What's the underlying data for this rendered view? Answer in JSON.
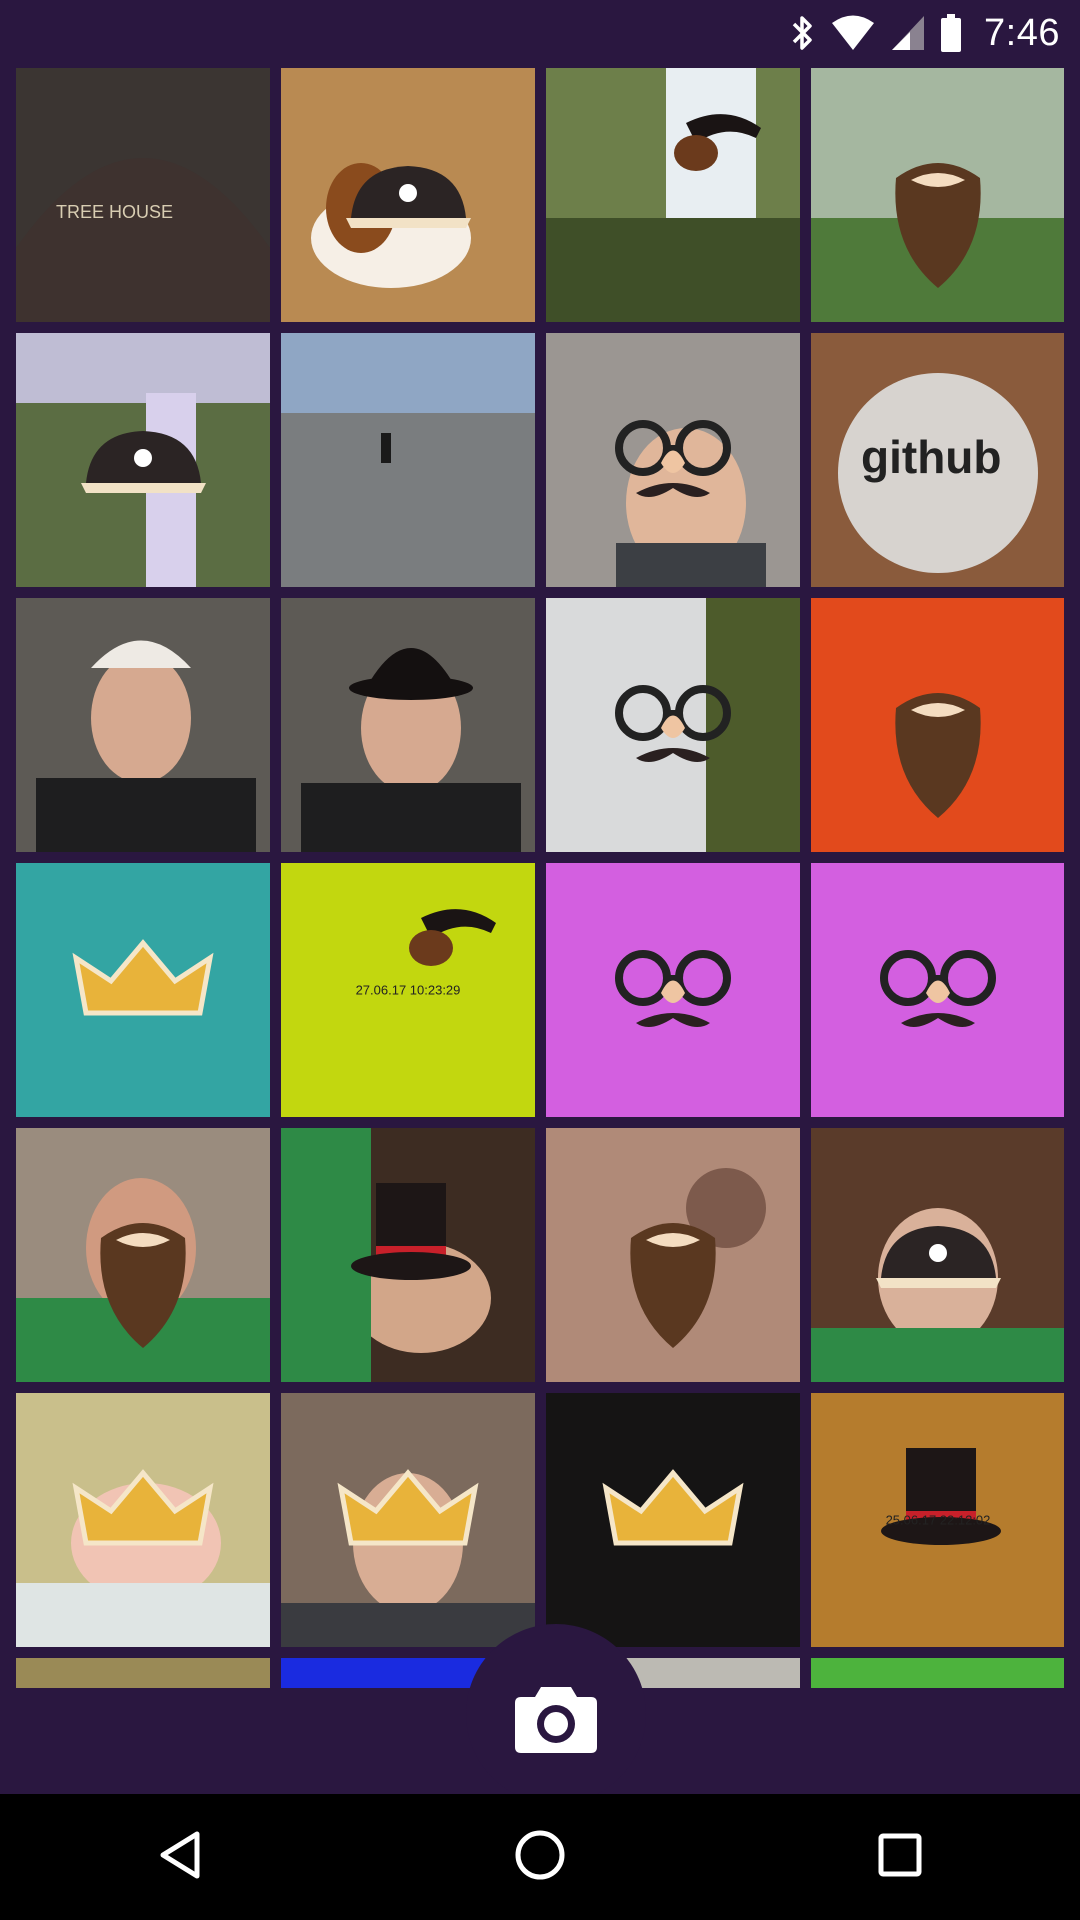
{
  "status_bar": {
    "time": "7:46",
    "icons": [
      "bluetooth-icon",
      "wifi-icon",
      "signal-icon",
      "battery-icon"
    ]
  },
  "grid": {
    "tiles": [
      {
        "kind": "photo",
        "scene": "cap"
      },
      {
        "kind": "photo",
        "scene": "dog-pirate"
      },
      {
        "kind": "photo",
        "scene": "waterfall-pipe"
      },
      {
        "kind": "photo",
        "scene": "plants-beard"
      },
      {
        "kind": "photo",
        "scene": "waterfall-pirate"
      },
      {
        "kind": "photo",
        "scene": "beach"
      },
      {
        "kind": "photo",
        "scene": "man-crown-glasses"
      },
      {
        "kind": "photo",
        "scene": "github-mug"
      },
      {
        "kind": "photo",
        "scene": "man-cap"
      },
      {
        "kind": "photo",
        "scene": "man-bowler"
      },
      {
        "kind": "photo",
        "scene": "waterfall-glasses"
      },
      {
        "kind": "color",
        "scene": "beard",
        "color": "#e24a1c"
      },
      {
        "kind": "color",
        "scene": "crown",
        "color": "#33a5a3"
      },
      {
        "kind": "color",
        "scene": "pipe",
        "color": "#c2d70f",
        "stamp": "27.06.17 10:23:29"
      },
      {
        "kind": "color",
        "scene": "glasses",
        "color": "#d35fe0"
      },
      {
        "kind": "color",
        "scene": "glasses",
        "color": "#d35fe0"
      },
      {
        "kind": "photo",
        "scene": "man-beard"
      },
      {
        "kind": "photo",
        "scene": "man-tophat"
      },
      {
        "kind": "photo",
        "scene": "closeup-beard"
      },
      {
        "kind": "photo",
        "scene": "man-pirate"
      },
      {
        "kind": "photo",
        "scene": "baby-crown"
      },
      {
        "kind": "photo",
        "scene": "man-crown-beard"
      },
      {
        "kind": "color",
        "scene": "dark-crown",
        "color": "#151414"
      },
      {
        "kind": "color",
        "scene": "hats",
        "color": "#b57c2d",
        "stamp": "25.06.17 22:12:02"
      },
      {
        "kind": "photo",
        "scene": "partial-olive"
      },
      {
        "kind": "photo",
        "scene": "partial-blue"
      },
      {
        "kind": "photo",
        "scene": "partial-gray"
      },
      {
        "kind": "color",
        "scene": "plain",
        "color": "#4db33d"
      }
    ]
  },
  "actions": {
    "camera_icon": "camera-icon"
  },
  "nav": {
    "back_icon": "back-icon",
    "home_icon": "home-icon",
    "recents_icon": "recents-icon"
  },
  "colors": {
    "app_background": "#2a1740",
    "nav_background": "#000000"
  }
}
